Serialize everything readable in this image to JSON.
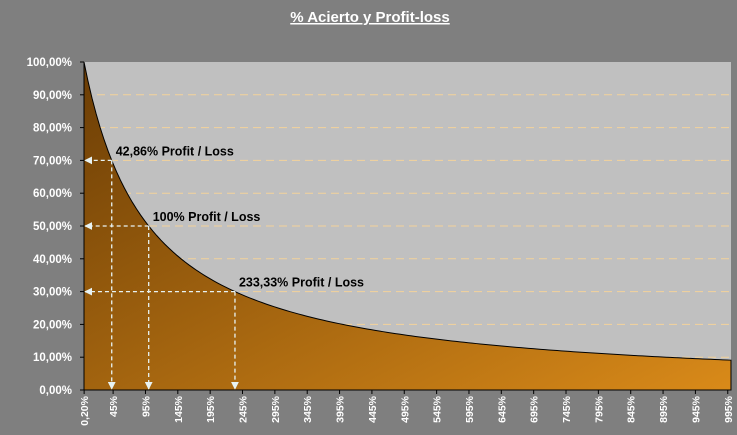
{
  "chart_data": {
    "type": "area",
    "title": "% Acierto y Profit-loss",
    "xlabel": "",
    "ylabel": "",
    "ylim": [
      0,
      100
    ],
    "y_tick_labels": [
      "0,00%",
      "10,00%",
      "20,00%",
      "30,00%",
      "40,00%",
      "50,00%",
      "60,00%",
      "70,00%",
      "80,00%",
      "90,00%",
      "100,00%"
    ],
    "y_tick_values": [
      0,
      10,
      20,
      30,
      40,
      50,
      60,
      70,
      80,
      90,
      100
    ],
    "x_tick_labels": [
      "0,20%",
      "45%",
      "95%",
      "145%",
      "195%",
      "245%",
      "295%",
      "345%",
      "395%",
      "445%",
      "495%",
      "545%",
      "595%",
      "645%",
      "695%",
      "745%",
      "795%",
      "845%",
      "895%",
      "945%",
      "995%"
    ],
    "x_tick_values": [
      0.2,
      45,
      95,
      145,
      195,
      245,
      295,
      345,
      395,
      445,
      495,
      545,
      595,
      645,
      695,
      745,
      795,
      845,
      895,
      945,
      995
    ],
    "xlim": [
      0,
      1000
    ],
    "series": [
      {
        "name": "% Acierto",
        "formula": "100 / (1 + x/100)",
        "x": [
          0,
          10,
          25,
          42.86,
          60,
          80,
          100,
          125,
          150,
          175,
          200,
          233.33,
          275,
          300,
          350,
          400,
          450,
          500,
          600,
          700,
          800,
          900,
          1000
        ],
        "y": [
          100,
          90.91,
          80,
          70,
          62.5,
          55.56,
          50,
          44.44,
          40,
          36.36,
          33.33,
          30,
          26.67,
          25,
          22.22,
          20,
          18.18,
          16.67,
          14.29,
          12.5,
          11.11,
          10,
          9.09
        ]
      }
    ],
    "annotations": [
      {
        "label": "42,86% Profit / Loss",
        "x": 42.86,
        "y": 70
      },
      {
        "label": "100% Profit / Loss",
        "x": 100,
        "y": 50
      },
      {
        "label": "233,33% Profit / Loss",
        "x": 233.33,
        "y": 30
      }
    ],
    "colors": {
      "background": "#7f7f7f",
      "plot_area": "#c0c0c0",
      "area_light": "#d98a19",
      "area_dark": "#6b3d05",
      "gridline": "#f3d29a",
      "guide": "#e8f3f3"
    },
    "grid": true
  }
}
